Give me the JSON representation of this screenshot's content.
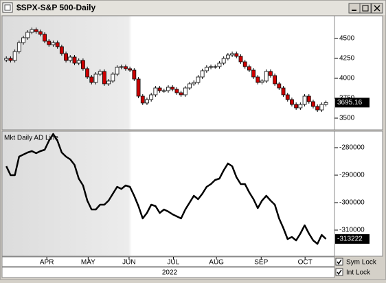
{
  "window": {
    "title": "$SPX-S&P 500-Daily"
  },
  "controls": [
    {
      "label": "Sym Lock",
      "checked": true
    },
    {
      "label": "Int Lock",
      "checked": true
    }
  ],
  "chart_data": [
    {
      "type": "candlestick",
      "up_color": "#ffffff",
      "down_color": "#cc0000",
      "xlim": [
        -1,
        77
      ],
      "ylim": [
        3362,
        4776
      ],
      "yticks": [
        3500,
        3750,
        4000,
        4250,
        4500
      ],
      "open": [
        4230,
        4250,
        4224,
        4336,
        4448,
        4509,
        4578,
        4612,
        4586,
        4552,
        4466,
        4422,
        4448,
        4397,
        4310,
        4224,
        4267,
        4190,
        4224,
        4121,
        4017,
        3948,
        4052,
        4086,
        3931,
        3966,
        4052,
        4138,
        4147,
        4121,
        4103,
        3991,
        3776,
        3690,
        3733,
        3793,
        3879,
        3845,
        3845,
        3888,
        3862,
        3819,
        3793,
        3879,
        3931,
        3948,
        4017,
        4095,
        4138,
        4147,
        4147,
        4190,
        4250,
        4293,
        4310,
        4276,
        4207,
        4147,
        4103,
        4017,
        3948,
        3966,
        4086,
        4034,
        3931,
        3879,
        3793,
        3733,
        3672,
        3629,
        3672,
        3776,
        3707,
        3647,
        3603,
        3672
      ],
      "high": [
        4275,
        4275,
        4361,
        4473,
        4534,
        4603,
        4637,
        4637,
        4611,
        4577,
        4491,
        4473,
        4473,
        4422,
        4335,
        4292,
        4292,
        4249,
        4249,
        4146,
        4042,
        4077,
        4111,
        4111,
        3991,
        4077,
        4163,
        4172,
        4172,
        4146,
        4128,
        4016,
        3801,
        3758,
        3818,
        3904,
        3904,
        3870,
        3913,
        3913,
        3887,
        3844,
        3904,
        3956,
        3973,
        4042,
        4120,
        4163,
        4172,
        4172,
        4215,
        4275,
        4318,
        4335,
        4335,
        4301,
        4232,
        4172,
        4128,
        4042,
        3991,
        4111,
        4111,
        4059,
        3956,
        3904,
        3818,
        3758,
        3697,
        3697,
        3801,
        3801,
        3732,
        3672,
        3697,
        3720
      ],
      "low": [
        4205,
        4199,
        4199,
        4311,
        4423,
        4484,
        4553,
        4561,
        4527,
        4441,
        4397,
        4397,
        4372,
        4285,
        4199,
        4199,
        4165,
        4165,
        4096,
        3992,
        3923,
        3923,
        4027,
        3906,
        3906,
        3941,
        4027,
        4113,
        4096,
        4078,
        3966,
        3751,
        3665,
        3665,
        3708,
        3768,
        3820,
        3820,
        3820,
        3837,
        3794,
        3768,
        3768,
        3854,
        3906,
        3923,
        3992,
        4070,
        4113,
        4122,
        4122,
        4165,
        4225,
        4268,
        4251,
        4182,
        4122,
        4078,
        3992,
        3923,
        3923,
        3941,
        4009,
        3906,
        3854,
        3768,
        3708,
        3647,
        3604,
        3604,
        3647,
        3682,
        3622,
        3578,
        3578,
        3647
      ],
      "close": [
        4250,
        4224,
        4336,
        4448,
        4509,
        4578,
        4612,
        4586,
        4552,
        4466,
        4422,
        4448,
        4397,
        4310,
        4224,
        4267,
        4190,
        4224,
        4121,
        4017,
        3948,
        4052,
        4086,
        3931,
        3966,
        4052,
        4138,
        4147,
        4121,
        4103,
        3991,
        3776,
        3690,
        3733,
        3793,
        3879,
        3845,
        3845,
        3888,
        3862,
        3819,
        3793,
        3879,
        3931,
        3948,
        4017,
        4095,
        4138,
        4147,
        4147,
        4190,
        4250,
        4293,
        4310,
        4276,
        4207,
        4147,
        4103,
        4017,
        3948,
        3966,
        4086,
        4034,
        3931,
        3879,
        3793,
        3733,
        3672,
        3629,
        3672,
        3776,
        3707,
        3647,
        3603,
        3672,
        3695.16
      ]
    },
    {
      "type": "line",
      "title": "Mkt Daily AD Line",
      "color": "#000000",
      "xlim": [
        -1,
        77
      ],
      "xlabel": "2022",
      "xticks": [
        {
          "value": 9.5,
          "label": "APR"
        },
        {
          "value": 19.2,
          "label": "MAY"
        },
        {
          "value": 28.8,
          "label": "JUN"
        },
        {
          "value": 39.2,
          "label": "JUL"
        },
        {
          "value": 49.3,
          "label": "AUG"
        },
        {
          "value": 59.8,
          "label": "SEP"
        },
        {
          "value": 70.1,
          "label": "OCT"
        }
      ],
      "ylim": [
        -319250,
        -274250
      ],
      "yticks": [
        -310000,
        -300000,
        -290000,
        -280000
      ],
      "values": [
        -286750,
        -290000,
        -290000,
        -283250,
        -282500,
        -281750,
        -281250,
        -282000,
        -281250,
        -280750,
        -277500,
        -275000,
        -277500,
        -281750,
        -283250,
        -284250,
        -286250,
        -291250,
        -293750,
        -299250,
        -302500,
        -302500,
        -300750,
        -300750,
        -299250,
        -296750,
        -294250,
        -295000,
        -293750,
        -294250,
        -297500,
        -301250,
        -305750,
        -303750,
        -300750,
        -301250,
        -303750,
        -302500,
        -303250,
        -304250,
        -305000,
        -305750,
        -302500,
        -300000,
        -297500,
        -298750,
        -296750,
        -294250,
        -293250,
        -291750,
        -291250,
        -288250,
        -285750,
        -286750,
        -290750,
        -293250,
        -293250,
        -296250,
        -298750,
        -302000,
        -299250,
        -297500,
        -299250,
        -300750,
        -305750,
        -309250,
        -313250,
        -312500,
        -313750,
        -311250,
        -308250,
        -311250,
        -313750,
        -315000,
        -311750,
        -313222
      ]
    }
  ]
}
